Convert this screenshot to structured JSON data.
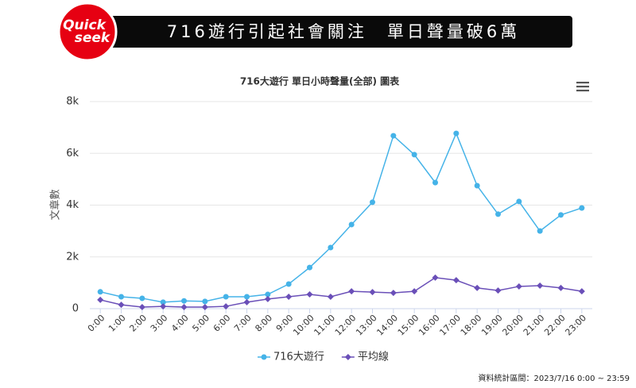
{
  "header": {
    "title": "716遊行引起社會關注　單日聲量破6萬",
    "logo": [
      "Quick",
      "seek"
    ]
  },
  "chart_data": {
    "type": "line",
    "title": "716大遊行 單日小時聲量(全部) 圖表",
    "y_label": "文章數",
    "categories": [
      "0:00",
      "1:00",
      "2:00",
      "3:00",
      "4:00",
      "5:00",
      "6:00",
      "7:00",
      "8:00",
      "9:00",
      "10:00",
      "11:00",
      "12:00",
      "13:00",
      "14:00",
      "15:00",
      "16:00",
      "17:00",
      "18:00",
      "19:00",
      "20:00",
      "21:00",
      "22:00",
      "23:00"
    ],
    "series": [
      {
        "name": "716大遊行",
        "color": "#45b3e8",
        "marker": "circle",
        "values": [
          650,
          460,
          400,
          250,
          300,
          280,
          460,
          460,
          550,
          950,
          1590,
          2360,
          3250,
          4110,
          6680,
          5950,
          4870,
          6770,
          4750,
          3650,
          4140,
          3000,
          3620,
          3890
        ]
      },
      {
        "name": "平均線",
        "color": "#6a4fb8",
        "marker": "diamond",
        "values": [
          340,
          150,
          60,
          90,
          60,
          60,
          90,
          250,
          370,
          460,
          550,
          460,
          670,
          640,
          610,
          670,
          1200,
          1100,
          800,
          700,
          860,
          890,
          800,
          670
        ]
      }
    ],
    "ylim": [
      0,
      8000
    ],
    "yticks": [
      0,
      {
        "value": 2000,
        "label": "2k"
      },
      {
        "value": 4000,
        "label": "4k"
      },
      {
        "value": 6000,
        "label": "6k"
      },
      {
        "value": 8000,
        "label": "8k"
      }
    ],
    "grid": true,
    "legend": "bottom"
  },
  "footer": {
    "note": "資料統計區間：2023/7/16 0:00 ~ 23:59"
  }
}
